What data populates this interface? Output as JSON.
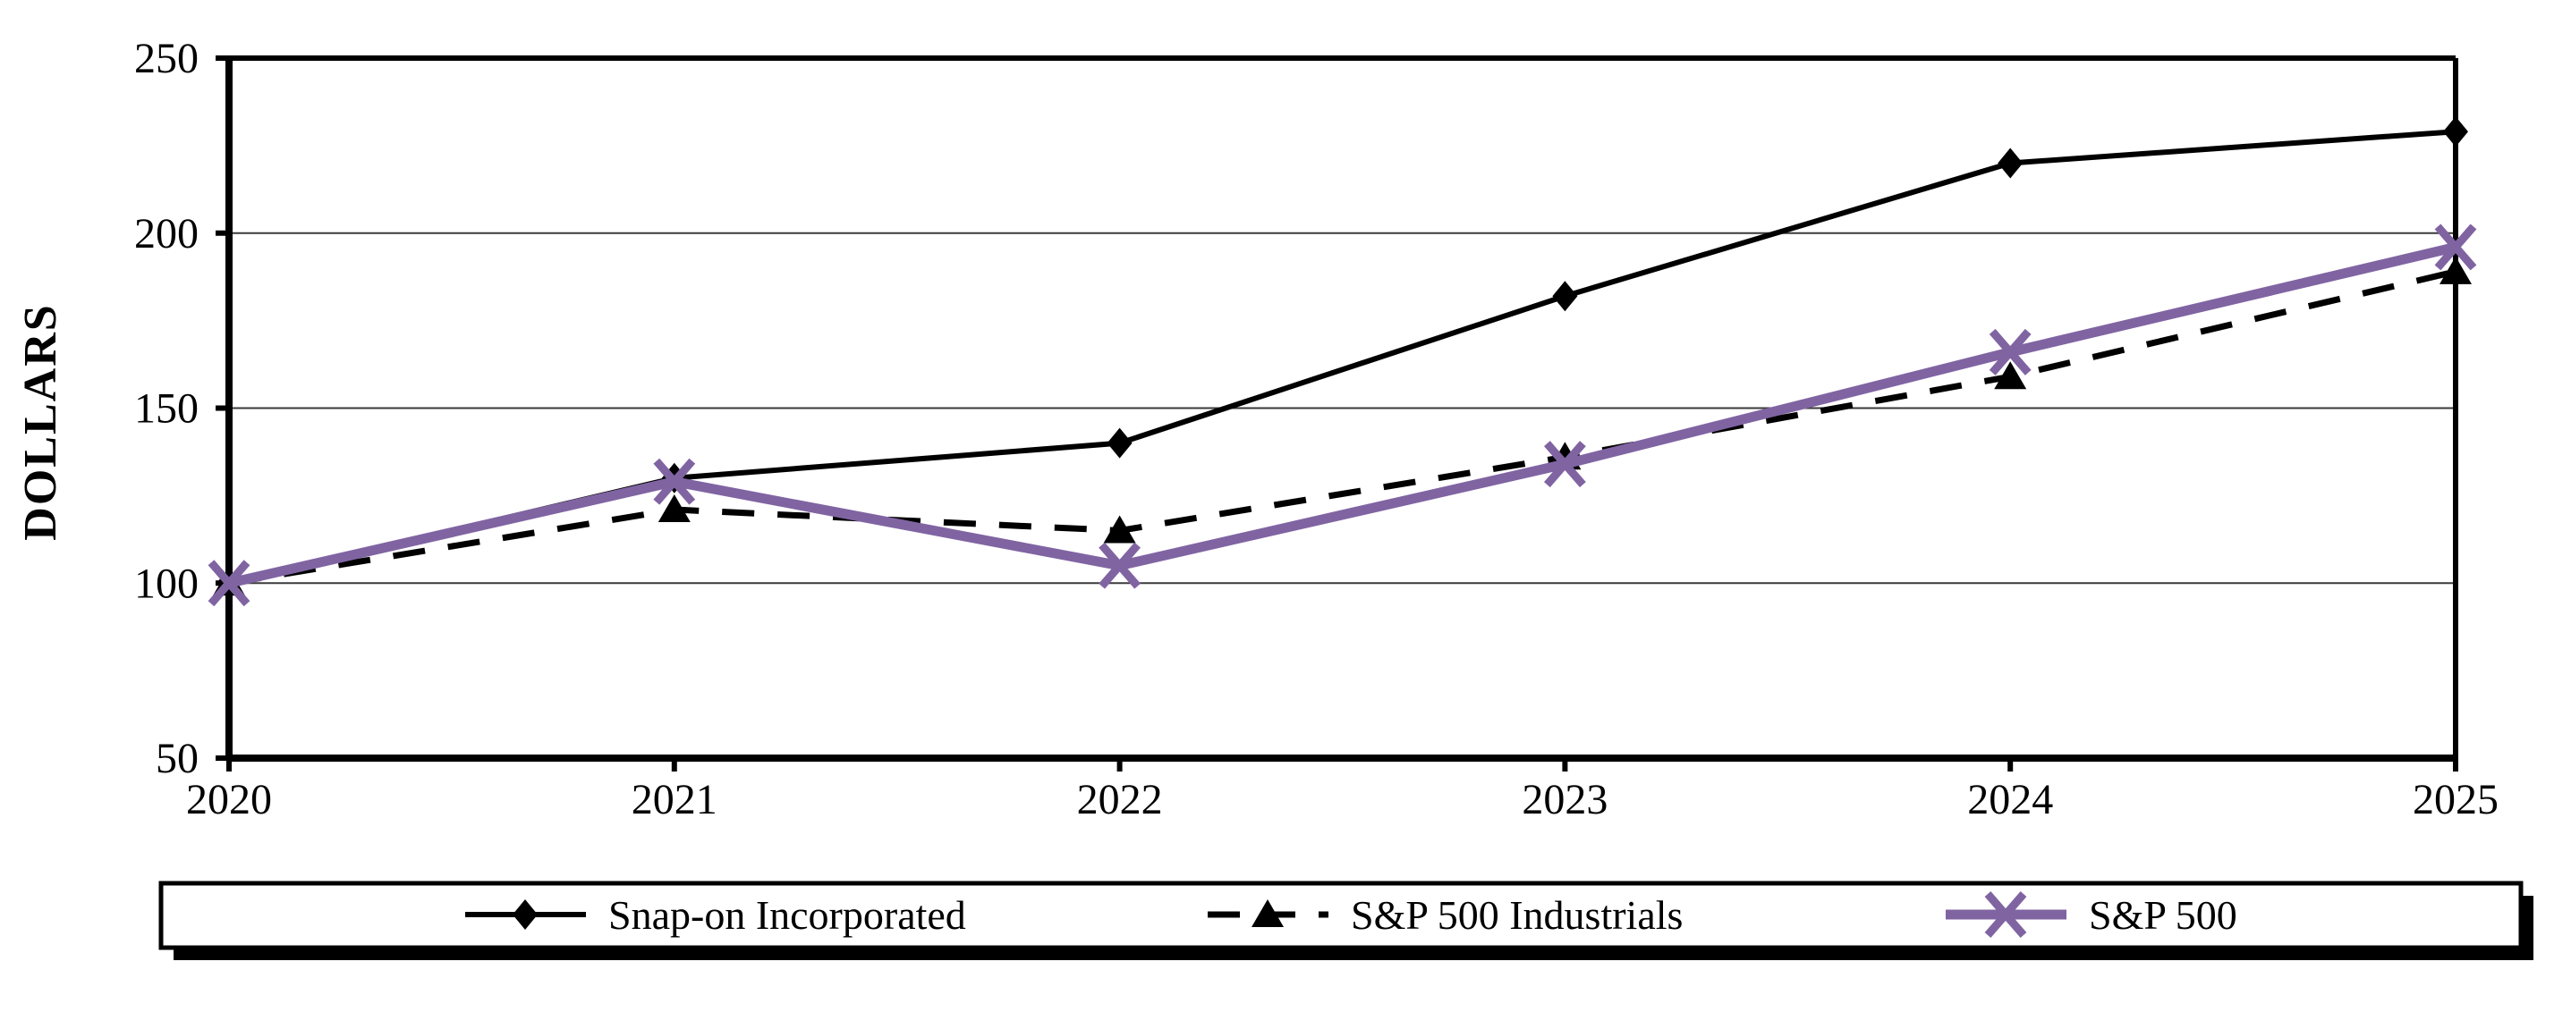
{
  "chart_data": {
    "type": "line",
    "title": "",
    "ylabel": "DOLLARS",
    "xlabel": "",
    "x": [
      "2020",
      "2021",
      "2022",
      "2023",
      "2024",
      "2025"
    ],
    "ylim": [
      50,
      250
    ],
    "yticks": [
      50,
      100,
      150,
      200,
      250
    ],
    "grid": true,
    "legend_position": "bottom",
    "series": [
      {
        "name": "Snap-on Incorporated",
        "values": [
          100,
          130,
          140,
          182,
          220,
          229
        ],
        "color": "#000000",
        "line": "solid",
        "marker": "diamond"
      },
      {
        "name": "S&P 500 Industrials",
        "values": [
          100,
          121,
          115,
          136,
          159,
          189
        ],
        "color": "#000000",
        "line": "dashed",
        "marker": "triangle"
      },
      {
        "name": "S&P 500",
        "values": [
          100,
          129,
          105,
          134,
          166,
          196
        ],
        "color": "#8064A2",
        "line": "solid-thick",
        "marker": "x"
      }
    ]
  }
}
